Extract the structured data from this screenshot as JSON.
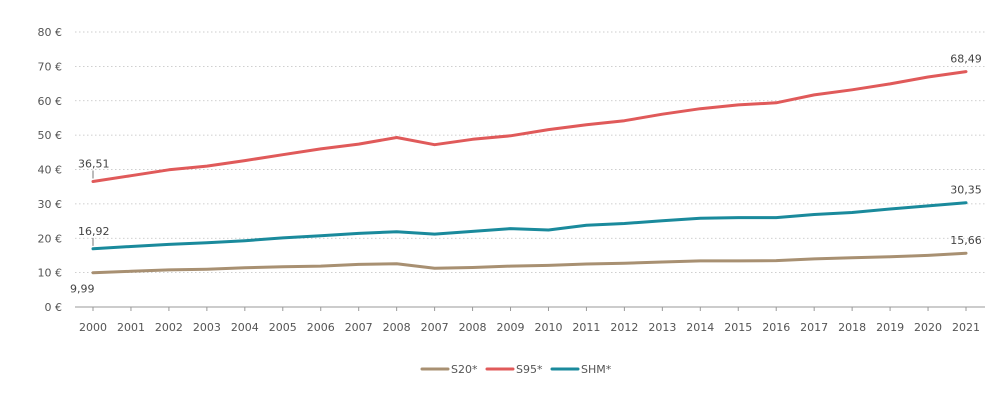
{
  "chart_data": {
    "type": "line",
    "title": "",
    "xlabel": "",
    "ylabel": "",
    "ylim": [
      0,
      80
    ],
    "yticks": [
      "0 €",
      "10 €",
      "20 €",
      "30 €",
      "40 €",
      "50 €",
      "60 €",
      "70 €",
      "80 €"
    ],
    "grid": true,
    "legend_position": "bottom-center",
    "categories": [
      "2000",
      "2001",
      "2002",
      "2003",
      "2004",
      "2005",
      "2006",
      "2007",
      "2008",
      "2007",
      "2008",
      "2009",
      "2010",
      "2011",
      "2012",
      "2013",
      "2014",
      "2015",
      "2016",
      "2017",
      "2018",
      "2019",
      "2020",
      "2021"
    ],
    "series": [
      {
        "name": "S20*",
        "color": "#A89072",
        "values": [
          9.99,
          10.4,
          10.8,
          11.0,
          11.4,
          11.7,
          11.9,
          12.4,
          12.6,
          11.3,
          11.5,
          11.9,
          12.1,
          12.5,
          12.7,
          13.1,
          13.4,
          13.4,
          13.5,
          14.0,
          14.3,
          14.6,
          15.0,
          15.66
        ]
      },
      {
        "name": "S95*",
        "color": "#E05A5A",
        "values": [
          36.51,
          38.2,
          39.9,
          41.0,
          42.6,
          44.3,
          46.0,
          47.4,
          49.3,
          47.2,
          48.8,
          49.8,
          51.6,
          53.0,
          54.2,
          56.1,
          57.7,
          58.8,
          59.4,
          61.7,
          63.2,
          64.9,
          66.9,
          68.49
        ]
      },
      {
        "name": "SHM*",
        "color": "#1A8A9C",
        "values": [
          16.92,
          17.6,
          18.2,
          18.7,
          19.3,
          20.1,
          20.7,
          21.4,
          21.9,
          21.2,
          22.0,
          22.8,
          22.4,
          23.8,
          24.3,
          25.1,
          25.8,
          26.0,
          26.0,
          26.9,
          27.5,
          28.5,
          29.4,
          30.35
        ]
      }
    ],
    "data_labels": [
      {
        "series": 1,
        "index": 0,
        "text": "36,51",
        "pos": "above-left"
      },
      {
        "series": 1,
        "index": 23,
        "text": "68,49",
        "pos": "above"
      },
      {
        "series": 2,
        "index": 0,
        "text": "16,92",
        "pos": "above-left"
      },
      {
        "series": 2,
        "index": 23,
        "text": "30,35",
        "pos": "above"
      },
      {
        "series": 0,
        "index": 0,
        "text": "9,99",
        "pos": "below"
      },
      {
        "series": 0,
        "index": 23,
        "text": "15,66",
        "pos": "above"
      }
    ]
  }
}
